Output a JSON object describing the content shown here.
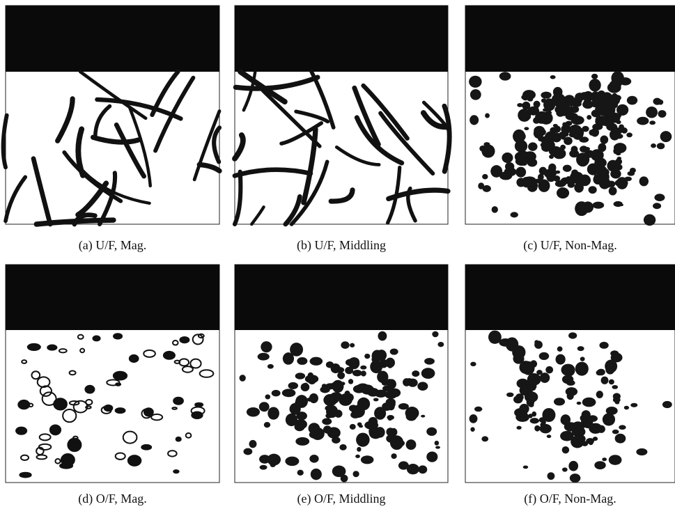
{
  "panels": [
    {
      "caption": "(a) U/F, Mag."
    },
    {
      "caption": "(b) U/F, Middling"
    },
    {
      "caption": "(c) U/F, Non-Mag."
    },
    {
      "caption": "(d) O/F, Mag."
    },
    {
      "caption": "(e) O/F, Middling"
    },
    {
      "caption": "(f) O/F, Non-Mag."
    }
  ]
}
